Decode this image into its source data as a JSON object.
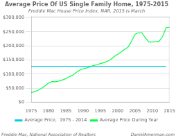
{
  "chart_data": {
    "type": "line",
    "title": "Average Price Of US Single Family Home, 1975-2015",
    "subtitle": "Freddie Mac House Price Index, NAR, 2015 is March",
    "annotations": [
      "Freddie Mac, National Association of Realtors",
      "DanielAmerman.com"
    ],
    "x": [
      1975,
      1976,
      1977,
      1978,
      1979,
      1980,
      1981,
      1982,
      1983,
      1984,
      1985,
      1986,
      1987,
      1988,
      1989,
      1990,
      1991,
      1992,
      1993,
      1994,
      1995,
      1996,
      1997,
      1998,
      1999,
      2000,
      2001,
      2002,
      2003,
      2004,
      2005,
      2006,
      2007,
      2008,
      2009,
      2010,
      2011,
      2012,
      2013,
      2014,
      2015
    ],
    "series": [
      {
        "name": "Average Price,  1975 - 2014",
        "color": "#00cfdd",
        "values": [
          128000,
          128000,
          128000,
          128000,
          128000,
          128000,
          128000,
          128000,
          128000,
          128000,
          128000,
          128000,
          128000,
          128000,
          128000,
          128000,
          128000,
          128000,
          128000,
          128000,
          128000,
          128000,
          128000,
          128000,
          128000,
          128000,
          128000,
          128000,
          128000,
          128000,
          128000,
          128000,
          128000,
          128000,
          128000,
          128000,
          128000,
          128000,
          128000,
          128000,
          null
        ]
      },
      {
        "name": "Average Price During Year",
        "color": "#00ff44",
        "values": [
          35300,
          38100,
          43400,
          49700,
          59000,
          68700,
          73800,
          73000,
          75600,
          79400,
          84100,
          90700,
          96400,
          106300,
          113900,
          119000,
          121700,
          126400,
          130900,
          132900,
          137500,
          140700,
          145200,
          152000,
          162300,
          170700,
          178600,
          188000,
          195200,
          216600,
          241200,
          246400,
          246200,
          228700,
          213700,
          213700,
          214700,
          216500,
          233600,
          264800,
          266100
        ]
      }
    ],
    "xlim": [
      1975,
      2015
    ],
    "xticks": [
      1975,
      1980,
      1985,
      1990,
      1995,
      2000,
      2005,
      2010,
      2015
    ],
    "ylim": [
      0,
      305000
    ],
    "yticks": [
      {
        "value": 0,
        "label": "$0"
      },
      {
        "value": 50000,
        "label": "$50,000"
      },
      {
        "value": 100000,
        "label": "$100,000"
      },
      {
        "value": 150000,
        "label": "$150,000"
      },
      {
        "value": 200000,
        "label": "$200,000"
      },
      {
        "value": 250000,
        "label": "$250,000"
      },
      {
        "value": 300000,
        "label": "$300,000"
      }
    ],
    "grid": "y",
    "legend": "bottom"
  }
}
